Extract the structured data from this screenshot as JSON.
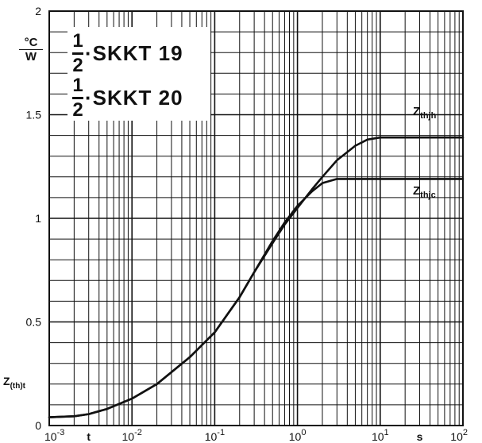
{
  "title_lines": [
    {
      "fraction_num": "1",
      "fraction_den": "2",
      "text": "·SKKT  19"
    },
    {
      "fraction_num": "1",
      "fraction_den": "2",
      "text": "·SKKT  20"
    }
  ],
  "y_unit": {
    "numerator": "°C",
    "denominator": "W"
  },
  "y_axis_symbol": {
    "main": "Z",
    "sub": "(th)t"
  },
  "chart_data": {
    "type": "line",
    "x_scale": "log",
    "xlim": [
      0.001,
      100
    ],
    "ylim": [
      0,
      2
    ],
    "grid": true,
    "x_ticks": [
      {
        "value": 0.001,
        "label": "10",
        "exp": "-3"
      },
      {
        "value": 0.01,
        "label": "10",
        "exp": "-2"
      },
      {
        "value": 0.1,
        "label": "10",
        "exp": "-1"
      },
      {
        "value": 1,
        "label": "10",
        "exp": "0"
      },
      {
        "value": 10,
        "label": "10",
        "exp": "1"
      },
      {
        "value": 100,
        "label": "10",
        "exp": "2"
      }
    ],
    "x_extra_labels": [
      {
        "value": 0.003,
        "label": "t"
      },
      {
        "value": 30,
        "label": "s"
      }
    ],
    "y_ticks": [
      {
        "value": 0,
        "label": "0"
      },
      {
        "value": 0.5,
        "label": "0.5"
      },
      {
        "value": 1,
        "label": "1"
      },
      {
        "value": 1.5,
        "label": "1.5"
      },
      {
        "value": 2,
        "label": "2"
      }
    ],
    "series": [
      {
        "name": "Z_thjh",
        "label_main": "Z",
        "label_sub": "thjh",
        "x": [
          0.001,
          0.002,
          0.003,
          0.005,
          0.01,
          0.02,
          0.05,
          0.1,
          0.2,
          0.3,
          0.5,
          0.7,
          1,
          1.5,
          2,
          3,
          5,
          7,
          10,
          20,
          50,
          100
        ],
        "y": [
          0.04,
          0.045,
          0.055,
          0.08,
          0.13,
          0.2,
          0.33,
          0.45,
          0.62,
          0.74,
          0.88,
          0.97,
          1.05,
          1.14,
          1.2,
          1.28,
          1.35,
          1.38,
          1.39,
          1.39,
          1.39,
          1.39
        ]
      },
      {
        "name": "Z_thjc",
        "label_main": "Z",
        "label_sub": "thjc",
        "x": [
          0.001,
          0.002,
          0.003,
          0.005,
          0.01,
          0.02,
          0.05,
          0.1,
          0.2,
          0.3,
          0.5,
          0.7,
          1,
          1.5,
          2,
          3,
          5,
          7,
          10,
          20,
          50,
          100
        ],
        "y": [
          0.04,
          0.045,
          0.055,
          0.08,
          0.13,
          0.2,
          0.33,
          0.45,
          0.62,
          0.74,
          0.89,
          0.98,
          1.06,
          1.13,
          1.17,
          1.19,
          1.19,
          1.19,
          1.19,
          1.19,
          1.19,
          1.19
        ]
      }
    ]
  }
}
